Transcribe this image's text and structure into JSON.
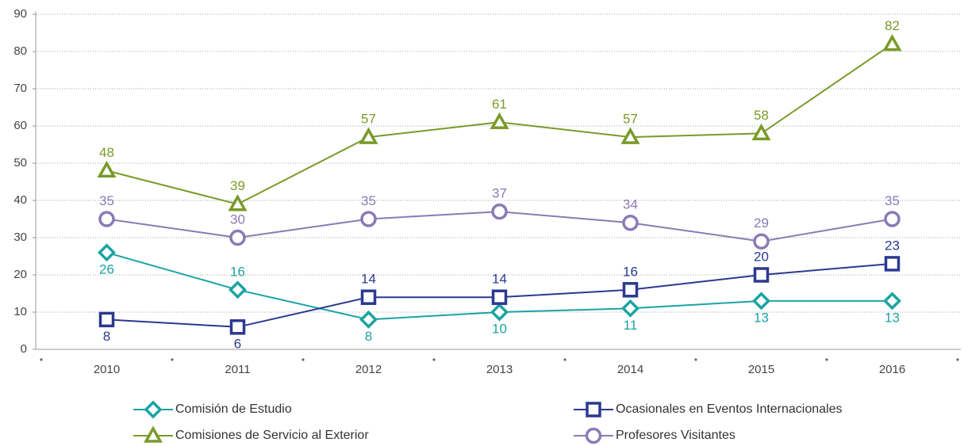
{
  "chart_data": {
    "type": "line",
    "categories": [
      "2010",
      "2011",
      "2012",
      "2013",
      "2014",
      "2015",
      "2016"
    ],
    "series": [
      {
        "name": "Comisión de Estudio",
        "color": "#1ba3a3",
        "marker": "diamond",
        "values": [
          26,
          16,
          8,
          10,
          11,
          13,
          13
        ]
      },
      {
        "name": "Ocasionales en Eventos Internacionales",
        "color": "#2b3990",
        "marker": "square",
        "values": [
          8,
          6,
          14,
          14,
          16,
          20,
          23
        ]
      },
      {
        "name": "Comisiones de Servicio al Exterior",
        "color": "#7a9a2a",
        "marker": "triangle",
        "values": [
          48,
          39,
          57,
          61,
          57,
          58,
          82
        ]
      },
      {
        "name": "Profesores Visitantes",
        "color": "#8a7bb5",
        "marker": "circle",
        "values": [
          35,
          30,
          35,
          37,
          34,
          29,
          35
        ]
      }
    ],
    "ylim": [
      0,
      90
    ],
    "yticks": [
      0,
      10,
      20,
      30,
      40,
      50,
      60,
      70,
      80,
      90
    ],
    "grid": true
  }
}
